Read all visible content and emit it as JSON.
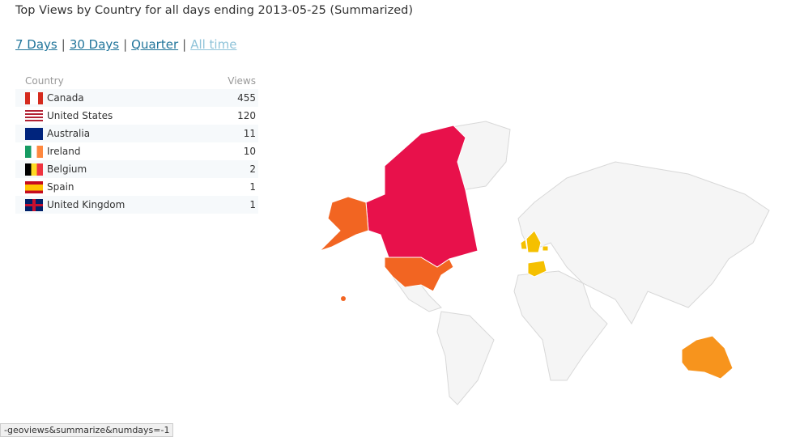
{
  "header": {
    "title": "Top Views by Country for all days ending 2013-05-25 (Summarized)"
  },
  "nav": {
    "links": [
      "7 Days",
      "30 Days",
      "Quarter",
      "All time"
    ],
    "separator": "|"
  },
  "table": {
    "columns": [
      "Country",
      "Views"
    ],
    "rows": [
      [
        "Canada",
        455
      ],
      [
        "United States",
        120
      ],
      [
        "Australia",
        11
      ],
      [
        "Ireland",
        10
      ],
      [
        "Belgium",
        2
      ],
      [
        "Spain",
        1
      ],
      [
        "United Kingdom",
        1
      ]
    ]
  },
  "status_bar": {
    "text": "-geoviews&summarize&numdays=-1"
  }
}
